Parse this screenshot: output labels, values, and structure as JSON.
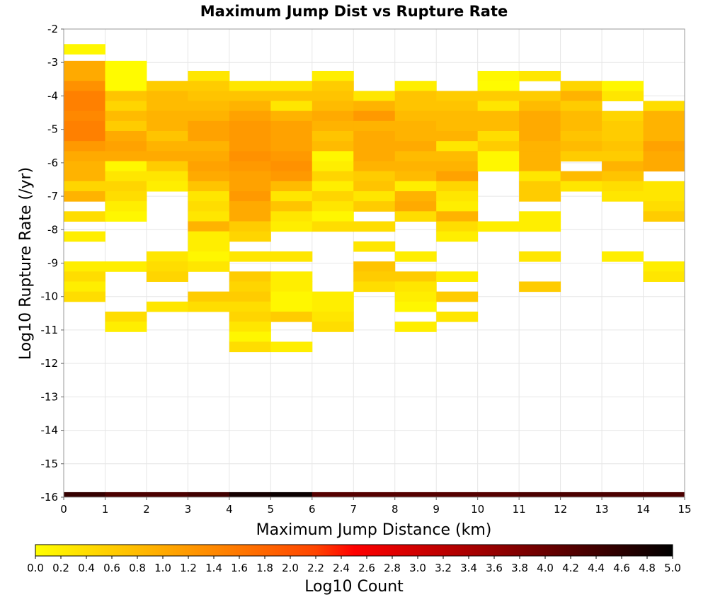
{
  "chart_data": {
    "type": "heatmap",
    "title": "Maximum Jump Dist vs Rupture Rate",
    "xlabel": "Maximum Jump Distance (km)",
    "ylabel": "Log10 Rupture Rate (/yr)",
    "xlim": [
      0,
      15
    ],
    "ylim": [
      -16,
      -2
    ],
    "x_ticks": [
      "0",
      "1",
      "2",
      "3",
      "4",
      "5",
      "6",
      "7",
      "8",
      "9",
      "10",
      "11",
      "12",
      "13",
      "14",
      "15"
    ],
    "y_ticks": [
      "-2",
      "-3",
      "-4",
      "-5",
      "-6",
      "-7",
      "-8",
      "-9",
      "-10",
      "-11",
      "-12",
      "-13",
      "-14",
      "-15",
      "-16"
    ],
    "x_bin_width": 1,
    "y_bin_height": 0.3,
    "colorbar": {
      "label": "Log10 Count",
      "range": [
        0,
        5
      ],
      "ticks": [
        "0.0",
        "0.2",
        "0.4",
        "0.6",
        "0.8",
        "1.0",
        "1.2",
        "1.4",
        "1.6",
        "1.8",
        "2.0",
        "2.2",
        "2.4",
        "2.6",
        "2.8",
        "3.0",
        "3.2",
        "3.4",
        "3.6",
        "3.8",
        "4.0",
        "4.2",
        "4.4",
        "4.6",
        "4.8",
        "5.0"
      ]
    },
    "bottom_row": {
      "y": -16,
      "values": [
        4.5,
        4.3,
        4.3,
        4.4,
        4.8,
        4.9,
        4.2,
        4.2,
        4.2,
        4.2,
        4.2,
        4.3,
        4.3,
        4.3,
        4.3
      ]
    },
    "columns": [
      {
        "x": 0,
        "cells": [
          [
            -2.6,
            0.1
          ],
          [
            -3.1,
            1.0
          ],
          [
            -3.4,
            1.0
          ],
          [
            -3.7,
            1.3
          ],
          [
            -4.0,
            1.5
          ],
          [
            -4.3,
            1.5
          ],
          [
            -4.6,
            1.4
          ],
          [
            -4.9,
            1.5
          ],
          [
            -5.2,
            1.5
          ],
          [
            -5.5,
            1.2
          ],
          [
            -5.8,
            1.0
          ],
          [
            -6.1,
            0.9
          ],
          [
            -6.4,
            0.9
          ],
          [
            -6.7,
            0.5
          ],
          [
            -7.0,
            0.9
          ],
          [
            -7.6,
            0.4
          ],
          [
            -8.2,
            0.2
          ],
          [
            -9.1,
            0.2
          ],
          [
            -9.4,
            0.4
          ],
          [
            -9.7,
            0.2
          ],
          [
            -10.0,
            0.4
          ]
        ]
      },
      {
        "x": 1,
        "cells": [
          [
            -3.1,
            0.05
          ],
          [
            -3.4,
            0.05
          ],
          [
            -3.7,
            0.05
          ],
          [
            -4.0,
            0.7
          ],
          [
            -4.3,
            0.5
          ],
          [
            -4.6,
            0.8
          ],
          [
            -4.9,
            0.6
          ],
          [
            -5.2,
            1.0
          ],
          [
            -5.5,
            1.1
          ],
          [
            -5.8,
            1.0
          ],
          [
            -6.1,
            0.1
          ],
          [
            -6.4,
            0.3
          ],
          [
            -6.7,
            0.5
          ],
          [
            -7.0,
            0.4
          ],
          [
            -7.3,
            0.2
          ],
          [
            -7.6,
            0.1
          ],
          [
            -9.1,
            0.2
          ],
          [
            -10.6,
            0.4
          ],
          [
            -10.9,
            0.2
          ]
        ]
      },
      {
        "x": 2,
        "cells": [
          [
            -3.7,
            0.6
          ],
          [
            -4.0,
            0.8
          ],
          [
            -4.3,
            0.8
          ],
          [
            -4.6,
            0.9
          ],
          [
            -4.9,
            0.9
          ],
          [
            -5.2,
            0.7
          ],
          [
            -5.5,
            0.9
          ],
          [
            -5.8,
            1.0
          ],
          [
            -6.1,
            0.6
          ],
          [
            -6.4,
            0.3
          ],
          [
            -6.7,
            0.2
          ],
          [
            -8.8,
            0.3
          ],
          [
            -9.1,
            0.4
          ],
          [
            -9.4,
            0.5
          ],
          [
            -10.3,
            0.3
          ]
        ]
      },
      {
        "x": 3,
        "cells": [
          [
            -3.4,
            0.3
          ],
          [
            -3.7,
            0.6
          ],
          [
            -4.0,
            0.7
          ],
          [
            -4.3,
            0.8
          ],
          [
            -4.6,
            0.9
          ],
          [
            -4.9,
            1.1
          ],
          [
            -5.2,
            1.1
          ],
          [
            -5.5,
            0.9
          ],
          [
            -5.8,
            1.0
          ],
          [
            -6.1,
            1.1
          ],
          [
            -6.4,
            1.0
          ],
          [
            -6.7,
            0.7
          ],
          [
            -7.0,
            0.3
          ],
          [
            -7.3,
            0.4
          ],
          [
            -7.6,
            0.3
          ],
          [
            -7.9,
            0.9
          ],
          [
            -8.2,
            0.2
          ],
          [
            -8.5,
            0.2
          ],
          [
            -8.8,
            0.1
          ],
          [
            -9.1,
            0.3
          ],
          [
            -10.0,
            0.6
          ],
          [
            -10.3,
            0.4
          ]
        ]
      },
      {
        "x": 4,
        "cells": [
          [
            -3.7,
            0.3
          ],
          [
            -4.0,
            0.7
          ],
          [
            -4.3,
            0.9
          ],
          [
            -4.6,
            1.1
          ],
          [
            -4.9,
            1.2
          ],
          [
            -5.2,
            1.2
          ],
          [
            -5.5,
            1.2
          ],
          [
            -5.8,
            1.3
          ],
          [
            -6.1,
            1.2
          ],
          [
            -6.4,
            1.1
          ],
          [
            -6.7,
            1.1
          ],
          [
            -7.0,
            1.2
          ],
          [
            -7.3,
            1.0
          ],
          [
            -7.6,
            1.0
          ],
          [
            -7.9,
            0.6
          ],
          [
            -8.2,
            0.5
          ],
          [
            -8.8,
            0.3
          ],
          [
            -9.4,
            0.6
          ],
          [
            -9.7,
            0.5
          ],
          [
            -10.0,
            0.6
          ],
          [
            -10.3,
            0.4
          ],
          [
            -10.6,
            0.5
          ],
          [
            -10.9,
            0.3
          ],
          [
            -11.2,
            0.1
          ],
          [
            -11.5,
            0.4
          ]
        ]
      },
      {
        "x": 5,
        "cells": [
          [
            -3.7,
            0.3
          ],
          [
            -4.0,
            0.7
          ],
          [
            -4.3,
            0.3
          ],
          [
            -4.6,
            0.9
          ],
          [
            -4.9,
            1.1
          ],
          [
            -5.2,
            1.1
          ],
          [
            -5.5,
            1.1
          ],
          [
            -5.8,
            1.2
          ],
          [
            -6.1,
            1.3
          ],
          [
            -6.4,
            1.2
          ],
          [
            -6.7,
            0.8
          ],
          [
            -7.0,
            0.3
          ],
          [
            -7.3,
            0.7
          ],
          [
            -7.6,
            0.3
          ],
          [
            -7.9,
            0.2
          ],
          [
            -8.8,
            0.3
          ],
          [
            -9.4,
            0.2
          ],
          [
            -9.7,
            0.2
          ],
          [
            -10.0,
            0.1
          ],
          [
            -10.3,
            0.1
          ],
          [
            -10.6,
            0.6
          ],
          [
            -11.5,
            0.2
          ]
        ]
      },
      {
        "x": 6,
        "cells": [
          [
            -3.4,
            0.2
          ],
          [
            -3.7,
            0.6
          ],
          [
            -4.0,
            0.7
          ],
          [
            -4.3,
            0.8
          ],
          [
            -4.6,
            1.0
          ],
          [
            -4.9,
            0.9
          ],
          [
            -5.2,
            0.7
          ],
          [
            -5.5,
            0.8
          ],
          [
            -5.8,
            0.1
          ],
          [
            -6.1,
            0.2
          ],
          [
            -6.4,
            0.5
          ],
          [
            -6.7,
            0.2
          ],
          [
            -7.0,
            0.5
          ],
          [
            -7.3,
            0.3
          ],
          [
            -7.6,
            0.1
          ],
          [
            -7.9,
            0.4
          ],
          [
            -10.0,
            0.2
          ],
          [
            -10.3,
            0.2
          ],
          [
            -10.6,
            0.3
          ],
          [
            -10.9,
            0.4
          ]
        ]
      },
      {
        "x": 7,
        "cells": [
          [
            -4.0,
            0.3
          ],
          [
            -4.3,
            0.9
          ],
          [
            -4.6,
            1.2
          ],
          [
            -4.9,
            0.9
          ],
          [
            -5.2,
            1.0
          ],
          [
            -5.5,
            1.0
          ],
          [
            -5.8,
            1.0
          ],
          [
            -6.1,
            0.9
          ],
          [
            -6.4,
            0.6
          ],
          [
            -6.7,
            0.7
          ],
          [
            -7.0,
            0.3
          ],
          [
            -7.3,
            0.6
          ],
          [
            -7.9,
            0.4
          ],
          [
            -8.5,
            0.3
          ],
          [
            -9.1,
            0.7
          ],
          [
            -9.4,
            0.6
          ],
          [
            -9.7,
            0.4
          ]
        ]
      },
      {
        "x": 8,
        "cells": [
          [
            -3.7,
            0.2
          ],
          [
            -4.0,
            0.7
          ],
          [
            -4.3,
            0.7
          ],
          [
            -4.6,
            0.8
          ],
          [
            -4.9,
            0.9
          ],
          [
            -5.2,
            0.9
          ],
          [
            -5.5,
            1.0
          ],
          [
            -5.8,
            0.8
          ],
          [
            -6.1,
            0.9
          ],
          [
            -6.4,
            0.8
          ],
          [
            -6.7,
            0.2
          ],
          [
            -7.0,
            0.9
          ],
          [
            -7.3,
            1.0
          ],
          [
            -7.6,
            0.4
          ],
          [
            -8.8,
            0.2
          ],
          [
            -9.4,
            0.6
          ],
          [
            -9.7,
            0.3
          ],
          [
            -10.0,
            0.2
          ],
          [
            -10.3,
            0.1
          ],
          [
            -10.9,
            0.2
          ]
        ]
      },
      {
        "x": 9,
        "cells": [
          [
            -4.0,
            0.6
          ],
          [
            -4.3,
            0.7
          ],
          [
            -4.6,
            0.8
          ],
          [
            -4.9,
            0.8
          ],
          [
            -5.2,
            0.9
          ],
          [
            -5.5,
            0.3
          ],
          [
            -5.8,
            0.8
          ],
          [
            -6.1,
            0.9
          ],
          [
            -6.4,
            1.1
          ],
          [
            -6.7,
            0.5
          ],
          [
            -7.0,
            0.3
          ],
          [
            -7.3,
            0.2
          ],
          [
            -7.6,
            0.9
          ],
          [
            -7.9,
            0.4
          ],
          [
            -8.2,
            0.2
          ],
          [
            -9.4,
            0.2
          ],
          [
            -10.0,
            0.6
          ],
          [
            -10.6,
            0.3
          ]
        ]
      },
      {
        "x": 10,
        "cells": [
          [
            -3.4,
            0.1
          ],
          [
            -3.7,
            0.05
          ],
          [
            -4.0,
            0.6
          ],
          [
            -4.3,
            0.3
          ],
          [
            -4.6,
            0.8
          ],
          [
            -4.9,
            0.8
          ],
          [
            -5.2,
            0.4
          ],
          [
            -5.5,
            0.6
          ],
          [
            -5.8,
            0.1
          ],
          [
            -6.1,
            0.1
          ],
          [
            -7.9,
            0.2
          ]
        ]
      },
      {
        "x": 11,
        "cells": [
          [
            -3.4,
            0.3
          ],
          [
            -4.0,
            0.6
          ],
          [
            -4.3,
            0.8
          ],
          [
            -4.6,
            1.0
          ],
          [
            -4.9,
            1.0
          ],
          [
            -5.2,
            1.0
          ],
          [
            -5.5,
            0.9
          ],
          [
            -5.8,
            0.9
          ],
          [
            -6.1,
            0.9
          ],
          [
            -6.4,
            0.3
          ],
          [
            -6.7,
            0.6
          ],
          [
            -7.0,
            0.6
          ],
          [
            -7.6,
            0.2
          ],
          [
            -7.9,
            0.2
          ],
          [
            -8.8,
            0.3
          ],
          [
            -9.7,
            0.6
          ]
        ]
      },
      {
        "x": 12,
        "cells": [
          [
            -3.7,
            0.5
          ],
          [
            -4.0,
            0.9
          ],
          [
            -4.3,
            0.6
          ],
          [
            -4.6,
            0.8
          ],
          [
            -4.9,
            0.8
          ],
          [
            -5.2,
            0.7
          ],
          [
            -5.5,
            0.8
          ],
          [
            -5.8,
            0.6
          ],
          [
            -6.4,
            0.8
          ],
          [
            -6.7,
            0.3
          ]
        ]
      },
      {
        "x": 13,
        "cells": [
          [
            -3.7,
            0.1
          ],
          [
            -4.0,
            0.3
          ],
          [
            -4.6,
            0.5
          ],
          [
            -4.9,
            0.6
          ],
          [
            -5.2,
            0.6
          ],
          [
            -5.5,
            0.7
          ],
          [
            -5.8,
            0.6
          ],
          [
            -6.1,
            0.9
          ],
          [
            -6.4,
            0.7
          ],
          [
            -6.7,
            0.4
          ],
          [
            -7.0,
            0.3
          ],
          [
            -8.8,
            0.2
          ]
        ]
      },
      {
        "x": 14,
        "cells": [
          [
            -4.3,
            0.4
          ],
          [
            -4.6,
            0.9
          ],
          [
            -4.9,
            0.9
          ],
          [
            -5.2,
            0.9
          ],
          [
            -5.5,
            1.1
          ],
          [
            -5.8,
            1.0
          ],
          [
            -6.1,
            1.0
          ],
          [
            -6.7,
            0.3
          ],
          [
            -7.0,
            0.3
          ],
          [
            -7.3,
            0.4
          ],
          [
            -7.6,
            0.6
          ],
          [
            -9.1,
            0.2
          ],
          [
            -9.4,
            0.3
          ]
        ]
      }
    ]
  }
}
